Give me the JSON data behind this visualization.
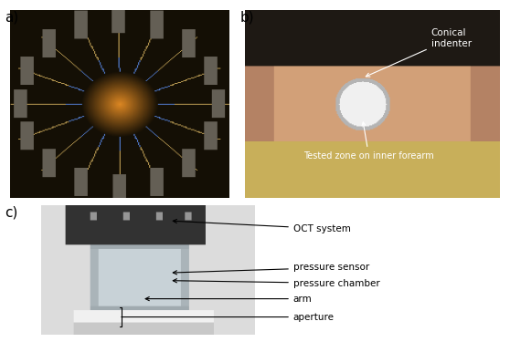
{
  "fig_width": 5.58,
  "fig_height": 3.75,
  "dpi": 100,
  "background_color": "#ffffff",
  "label_a": "a)",
  "label_b": "b)",
  "label_c": "c)",
  "label_fontsize": 11,
  "annotation_b_1": "Conical\nindenter",
  "annotation_b_2": "Tested zone on inner forearm",
  "annotation_c_1": "OCT system",
  "annotation_c_2": "pressure sensor",
  "annotation_c_3": "pressure chamber",
  "annotation_c_4": "arm",
  "annotation_c_5": "aperture",
  "annotation_fontsize": 7.5,
  "img_a_color_bg": "#1a0a00",
  "img_b_color_bg": "#c8956a",
  "img_c_color_bg": "#d0d0d0"
}
